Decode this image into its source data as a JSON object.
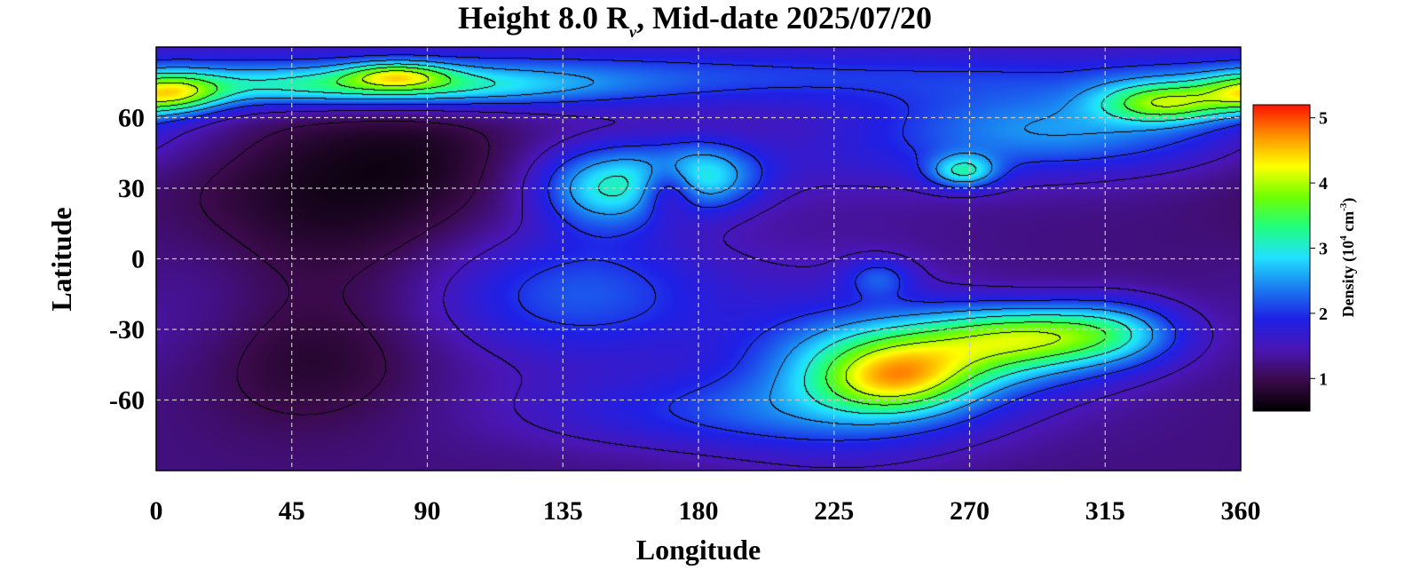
{
  "chart_data": {
    "type": "heatmap",
    "title": {
      "prefix": "Height 8.0 R",
      "subscript": "ν",
      "suffix": ", Mid-date 2025/07/20"
    },
    "xlabel": "Longitude",
    "ylabel": "Latitude",
    "xlim": [
      0,
      360
    ],
    "ylim": [
      -90,
      90
    ],
    "x_ticks": [
      0,
      45,
      90,
      135,
      180,
      225,
      270,
      315,
      360
    ],
    "y_ticks": [
      60,
      30,
      0,
      -30,
      -60
    ],
    "grid": true,
    "colorbar": {
      "label_prefix": "Density (10",
      "label_exp1": "4",
      "label_mid": " cm",
      "label_exp2": "-3",
      "label_suffix": ")",
      "range": [
        0.5,
        5.2
      ],
      "ticks": [
        1,
        2,
        3,
        4,
        5
      ],
      "colormap": [
        "#000000",
        "#3a0a4a",
        "#4a16b5",
        "#1f20e6",
        "#1a7cf0",
        "#20e0ff",
        "#20ff80",
        "#70ff00",
        "#ffff00",
        "#ff9000",
        "#ff1000"
      ]
    },
    "background_value": 1.2,
    "blobs": [
      {
        "lon": 120,
        "lat": 78,
        "slon": 200,
        "slat": 10,
        "value": 0.9
      },
      {
        "lon": 60,
        "lat": 30,
        "slon": 38,
        "slat": 30,
        "value": -0.55
      },
      {
        "lon": 90,
        "lat": 45,
        "slon": 20,
        "slat": 14,
        "value": -0.2
      },
      {
        "lon": 50,
        "lat": -45,
        "slon": 28,
        "slat": 20,
        "value": -0.4
      },
      {
        "lon": 70,
        "lat": 73,
        "slon": 50,
        "slat": 6,
        "value": 1.5
      },
      {
        "lon": 5,
        "lat": 70,
        "slon": 12,
        "slat": 6,
        "value": 1.8
      },
      {
        "lon": 80,
        "lat": 78,
        "slon": 12,
        "slat": 4,
        "value": 1.4
      },
      {
        "lon": 150,
        "lat": 30,
        "slon": 16,
        "slat": 12,
        "value": 1.6
      },
      {
        "lon": 180,
        "lat": 35,
        "slon": 14,
        "slat": 10,
        "value": 1.5
      },
      {
        "lon": 170,
        "lat": 30,
        "slon": 7,
        "slat": 8,
        "value": -1.2
      },
      {
        "lon": 225,
        "lat": 40,
        "slon": 70,
        "slat": 12,
        "value": 0.3
      },
      {
        "lon": 300,
        "lat": 55,
        "slon": 45,
        "slat": 12,
        "value": 1.2
      },
      {
        "lon": 335,
        "lat": 66,
        "slon": 15,
        "slat": 6,
        "value": 1.8
      },
      {
        "lon": 268,
        "lat": 37,
        "slon": 8,
        "slat": 5,
        "value": 1.4
      },
      {
        "lon": 140,
        "lat": -15,
        "slon": 35,
        "slat": 20,
        "value": 1.0
      },
      {
        "lon": 200,
        "lat": -65,
        "slon": 55,
        "slat": 12,
        "value": 0.8
      },
      {
        "lon": 230,
        "lat": -45,
        "slon": 30,
        "slat": 30,
        "value": 0.6
      },
      {
        "lon": 265,
        "lat": -40,
        "slon": 35,
        "slat": 12,
        "value": 1.8
      },
      {
        "lon": 295,
        "lat": -32,
        "slon": 24,
        "slat": 9,
        "value": 1.6
      },
      {
        "lon": 245,
        "lat": -52,
        "slon": 18,
        "slat": 10,
        "value": 1.7
      },
      {
        "lon": 320,
        "lat": -30,
        "slon": 15,
        "slat": 10,
        "value": 0.7
      },
      {
        "lon": 240,
        "lat": -8,
        "slon": 8,
        "slat": 6,
        "value": 0.7
      },
      {
        "lon": 15,
        "lat": -20,
        "slon": 20,
        "slat": 25,
        "value": 0.2
      }
    ]
  }
}
